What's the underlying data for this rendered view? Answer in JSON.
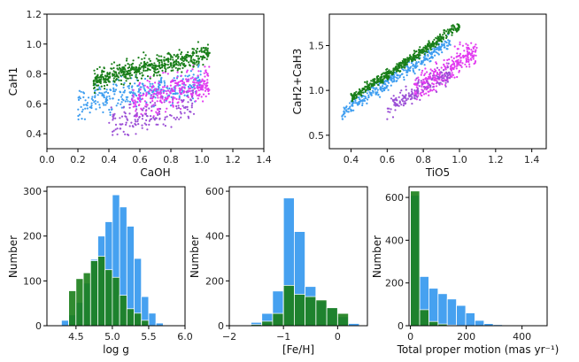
{
  "colors": {
    "green": "#1a7f1a",
    "blue": "#3d9df0",
    "magenta": "#e23bf0",
    "purple": "#9b4fd6",
    "frame": "#000000"
  },
  "chart_data": [
    {
      "type": "scatter",
      "xlabel": "CaOH",
      "ylabel": "CaH1",
      "xlim": [
        0.0,
        1.4
      ],
      "ylim": [
        0.3,
        1.2
      ],
      "xticks": [
        "0.0",
        "0.2",
        "0.4",
        "0.6",
        "0.8",
        "1.0",
        "1.2",
        "1.4"
      ],
      "yticks": [
        "0.4",
        "0.6",
        "0.8",
        "1.0",
        "1.2"
      ],
      "series": [
        {
          "name": "green",
          "x_range": [
            0.3,
            1.05
          ],
          "y_center": [
            0.74,
            0.92
          ],
          "spread": 0.06
        },
        {
          "name": "blue",
          "x_range": [
            0.2,
            1.0
          ],
          "y_center": [
            0.6,
            0.75
          ],
          "spread": 0.1
        },
        {
          "name": "magenta",
          "x_range": [
            0.55,
            1.05
          ],
          "y_center": [
            0.6,
            0.75
          ],
          "spread": 0.12
        },
        {
          "name": "purple",
          "x_range": [
            0.4,
            0.95
          ],
          "y_center": [
            0.45,
            0.6
          ],
          "spread": 0.1
        }
      ]
    },
    {
      "type": "scatter",
      "xlabel": "TiO5",
      "ylabel": "CaH2+CaH3",
      "xlim": [
        0.28,
        1.48
      ],
      "ylim": [
        0.35,
        1.85
      ],
      "xticks": [
        "0.4",
        "0.6",
        "0.8",
        "1.0",
        "1.2",
        "1.4"
      ],
      "yticks": [
        "0.5",
        "1.0",
        "1.5"
      ],
      "series": [
        {
          "name": "green",
          "x_range": [
            0.4,
            1.0
          ],
          "y_center": [
            0.9,
            1.7
          ],
          "spread": 0.05
        },
        {
          "name": "blue",
          "x_range": [
            0.35,
            0.95
          ],
          "y_center": [
            0.75,
            1.55
          ],
          "spread": 0.08
        },
        {
          "name": "magenta",
          "x_range": [
            0.75,
            1.1
          ],
          "y_center": [
            1.0,
            1.45
          ],
          "spread": 0.15
        },
        {
          "name": "purple",
          "x_range": [
            0.6,
            0.95
          ],
          "y_center": [
            0.8,
            1.2
          ],
          "spread": 0.12
        }
      ]
    },
    {
      "type": "bar",
      "xlabel": "log g",
      "ylabel": "Number",
      "xlim": [
        4.1,
        6.0
      ],
      "ylim": [
        0,
        310
      ],
      "xticks": [
        "4.5",
        "5.0",
        "5.5",
        "6.0"
      ],
      "yticks": [
        "0",
        "100",
        "200",
        "300"
      ],
      "bin_width": 0.1,
      "series": [
        {
          "name": "blue",
          "bin_starts": [
            4.3,
            4.4,
            4.5,
            4.6,
            4.7,
            4.8,
            4.9,
            5.0,
            5.1,
            5.2,
            5.3,
            5.4,
            5.5,
            5.6
          ],
          "values": [
            12,
            24,
            52,
            95,
            148,
            200,
            232,
            292,
            265,
            222,
            150,
            65,
            28,
            6
          ]
        },
        {
          "name": "green",
          "bin_starts": [
            4.4,
            4.5,
            4.6,
            4.7,
            4.8,
            4.9,
            5.0,
            5.1,
            5.2,
            5.3,
            5.4
          ],
          "values": [
            78,
            105,
            118,
            145,
            155,
            125,
            108,
            68,
            38,
            28,
            12
          ]
        }
      ]
    },
    {
      "type": "bar",
      "xlabel": "[Fe/H]",
      "ylabel": "Number",
      "xlim": [
        -2.0,
        0.55
      ],
      "ylim": [
        0,
        620
      ],
      "xticks": [
        "−2",
        "−1",
        "0"
      ],
      "yticks": [
        "0",
        "200",
        "400",
        "600"
      ],
      "bin_width": 0.2,
      "series": [
        {
          "name": "blue",
          "bin_starts": [
            -1.8,
            -1.6,
            -1.4,
            -1.2,
            -1.0,
            -0.8,
            -0.6,
            -0.4,
            -0.2,
            0.0,
            0.2
          ],
          "values": [
            3,
            15,
            55,
            155,
            570,
            420,
            175,
            110,
            80,
            40,
            10
          ]
        },
        {
          "name": "green",
          "bin_starts": [
            -1.6,
            -1.4,
            -1.2,
            -1.0,
            -0.8,
            -0.6,
            -0.4,
            -0.2,
            0.0
          ],
          "values": [
            5,
            20,
            55,
            180,
            140,
            130,
            115,
            80,
            55
          ]
        }
      ]
    },
    {
      "type": "bar",
      "xlabel": "Total proper motion (mas yr⁻¹)",
      "ylabel": "Number",
      "xlim": [
        -5,
        490
      ],
      "ylim": [
        0,
        650
      ],
      "xticks": [
        "0",
        "200",
        "400"
      ],
      "yticks": [
        "0",
        "200",
        "400",
        "600"
      ],
      "bin_width": 33,
      "series": [
        {
          "name": "blue",
          "bin_starts": [
            0,
            33,
            66,
            99,
            132,
            165,
            198,
            231,
            264,
            297,
            330,
            363,
            396,
            429
          ],
          "values": [
            610,
            230,
            175,
            150,
            125,
            95,
            60,
            25,
            10,
            5,
            3,
            2,
            1,
            1
          ]
        },
        {
          "name": "green",
          "bin_starts": [
            0,
            33,
            66,
            99,
            132,
            165
          ],
          "values": [
            630,
            75,
            20,
            8,
            3,
            1
          ]
        }
      ]
    }
  ]
}
